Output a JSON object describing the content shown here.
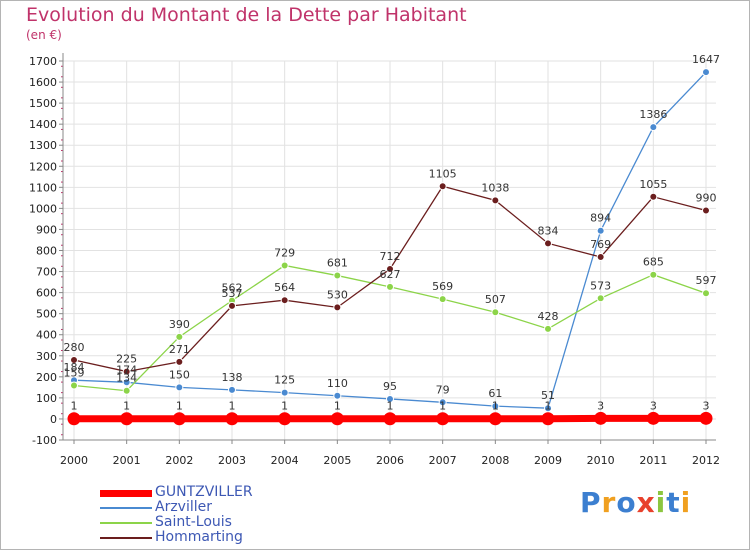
{
  "title": "Evolution du Montant de la Dette par Habitant",
  "unit": "(en €)",
  "brand": "Proxiti",
  "chart_data": {
    "type": "line",
    "title": "Evolution du Montant de la Dette par Habitant",
    "ylabel": "(en €)",
    "xlabel": "",
    "x": [
      "2000",
      "2001",
      "2002",
      "2003",
      "2004",
      "2005",
      "2006",
      "2007",
      "2008",
      "2009",
      "2010",
      "2011",
      "2012"
    ],
    "ylim": [
      -100,
      1700
    ],
    "yticks": [
      -100,
      0,
      100,
      200,
      300,
      400,
      500,
      600,
      700,
      800,
      900,
      1000,
      1100,
      1200,
      1300,
      1400,
      1500,
      1600,
      1700
    ],
    "grid": true,
    "legend_position": "bottom-left",
    "series": [
      {
        "name": "GUNTZVILLER",
        "color": "#ff0000",
        "values": [
          1,
          1,
          1,
          1,
          1,
          1,
          1,
          1,
          1,
          1,
          3,
          3,
          3
        ]
      },
      {
        "name": "Arzviller",
        "color": "#4a8ad1",
        "values": [
          184,
          174,
          150,
          138,
          125,
          110,
          95,
          79,
          61,
          51,
          894,
          1386,
          1647
        ]
      },
      {
        "name": "Saint-Louis",
        "color": "#8cd449",
        "values": [
          159,
          134,
          390,
          562,
          729,
          681,
          627,
          569,
          507,
          428,
          573,
          685,
          597
        ]
      },
      {
        "name": "Hommarting",
        "color": "#6b1e1e",
        "values": [
          280,
          225,
          271,
          537,
          564,
          530,
          712,
          1105,
          1038,
          834,
          769,
          1055,
          990
        ]
      }
    ]
  }
}
